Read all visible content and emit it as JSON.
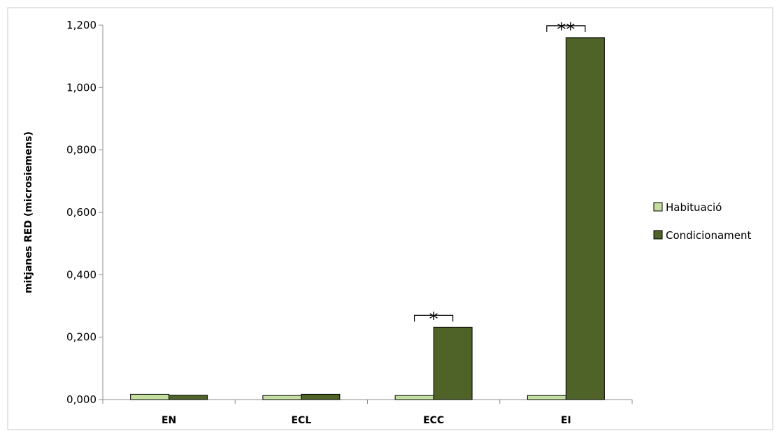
{
  "chart_data": {
    "type": "bar",
    "categories": [
      "EN",
      "ECL",
      "ECC",
      "EI"
    ],
    "series": [
      {
        "name": "Habituació",
        "color": "#c4dea0",
        "values": [
          0.017,
          0.013,
          0.013,
          0.013
        ]
      },
      {
        "name": "Condicionament",
        "color": "#4f6228",
        "values": [
          0.014,
          0.017,
          0.232,
          1.16
        ]
      }
    ],
    "title": "",
    "xlabel": "",
    "ylabel": "mitjanes RED (microsiemens)",
    "ylim": [
      0,
      1.2
    ],
    "yticks": [
      0,
      0.2,
      0.4,
      0.6,
      0.8,
      1.0,
      1.2
    ],
    "ytick_labels": [
      "0,000",
      "0,200",
      "0,400",
      "0,600",
      "0,800",
      "1,000",
      "1,200"
    ],
    "grid": false,
    "legend_position": "right",
    "annotations": [
      {
        "category": "ECC",
        "text": "*"
      },
      {
        "category": "EI",
        "text": "**"
      }
    ]
  }
}
